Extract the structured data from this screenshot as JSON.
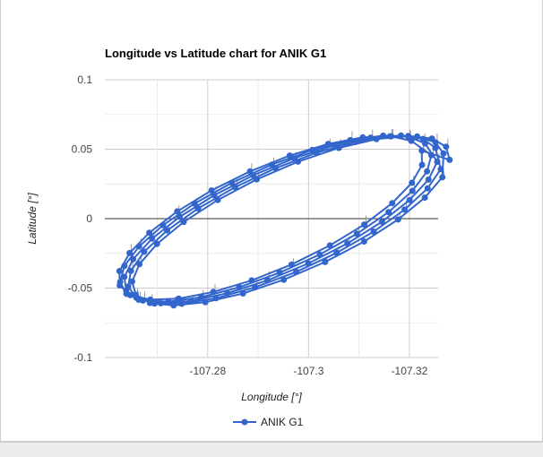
{
  "chart_data": {
    "type": "line",
    "title": "Longitude vs Latitude chart for ANIK G1",
    "xlabel": "Longitude [°]",
    "ylabel": "Latitude [°]",
    "xlim": [
      -107.2596,
      -107.3257
    ],
    "ylim": [
      -0.1,
      0.1
    ],
    "x_ticks": [
      -107.28,
      -107.3,
      -107.32
    ],
    "x_tick_labels": [
      "-107.28",
      "-107.3",
      "-107.32"
    ],
    "y_ticks": [
      0.1,
      0.05,
      0,
      -0.05,
      -0.1
    ],
    "y_tick_labels": [
      "0.1",
      "0.05",
      "0",
      "-0.05",
      "-0.1"
    ],
    "grid": true,
    "legend_position": "bottom",
    "series": [
      {
        "name": "ANIK G1",
        "color": "#3366cc",
        "error_bars": true,
        "orbits": [
          {
            "center": [
              -107.2925,
              0.0005
            ],
            "rx": 0.0328,
            "ry": 0.0592,
            "tilt": -0.42
          },
          {
            "center": [
              -107.2935,
              0.0
            ],
            "rx": 0.0335,
            "ry": 0.0595,
            "tilt": -0.42
          },
          {
            "center": [
              -107.2945,
              -0.0005
            ],
            "rx": 0.0338,
            "ry": 0.0598,
            "tilt": -0.42
          },
          {
            "center": [
              -107.2955,
              -0.001
            ],
            "rx": 0.034,
            "ry": 0.06,
            "tilt": -0.42
          },
          {
            "center": [
              -107.2965,
              -0.0015
            ],
            "rx": 0.0342,
            "ry": 0.0602,
            "tilt": -0.42
          }
        ],
        "points_per_orbit": 24
      }
    ]
  }
}
